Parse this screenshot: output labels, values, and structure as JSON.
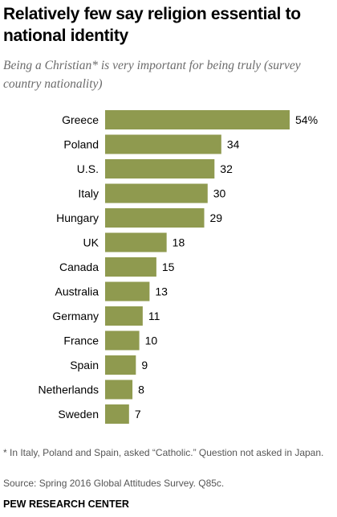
{
  "header": {
    "title": "Relatively few say religion essential to national identity",
    "subtitle": "Being a Christian* is very important for being truly (survey country nationality)"
  },
  "footer": {
    "footnote": "* In Italy, Poland and Spain, asked “Catholic.” Question not asked in Japan.",
    "source": "Source: Spring 2016 Global Attitudes Survey. Q85c.",
    "brand": "PEW RESEARCH CENTER"
  },
  "colors": {
    "bar": "#8f9a4f",
    "label_text": "#000000"
  },
  "chart_data": {
    "type": "bar",
    "orientation": "horizontal",
    "categories": [
      "Greece",
      "Poland",
      "U.S.",
      "Italy",
      "Hungary",
      "UK",
      "Canada",
      "Australia",
      "Germany",
      "France",
      "Spain",
      "Netherlands",
      "Sweden"
    ],
    "values": [
      54,
      34,
      32,
      30,
      29,
      18,
      15,
      13,
      11,
      10,
      9,
      8,
      7
    ],
    "value_labels": [
      "54%",
      "34",
      "32",
      "30",
      "29",
      "18",
      "15",
      "13",
      "11",
      "10",
      "9",
      "8",
      "7"
    ],
    "title": "Relatively few say religion essential to national identity",
    "xlabel": "",
    "ylabel": "",
    "xlim": [
      0,
      54
    ],
    "grid": false,
    "legend": "none"
  }
}
